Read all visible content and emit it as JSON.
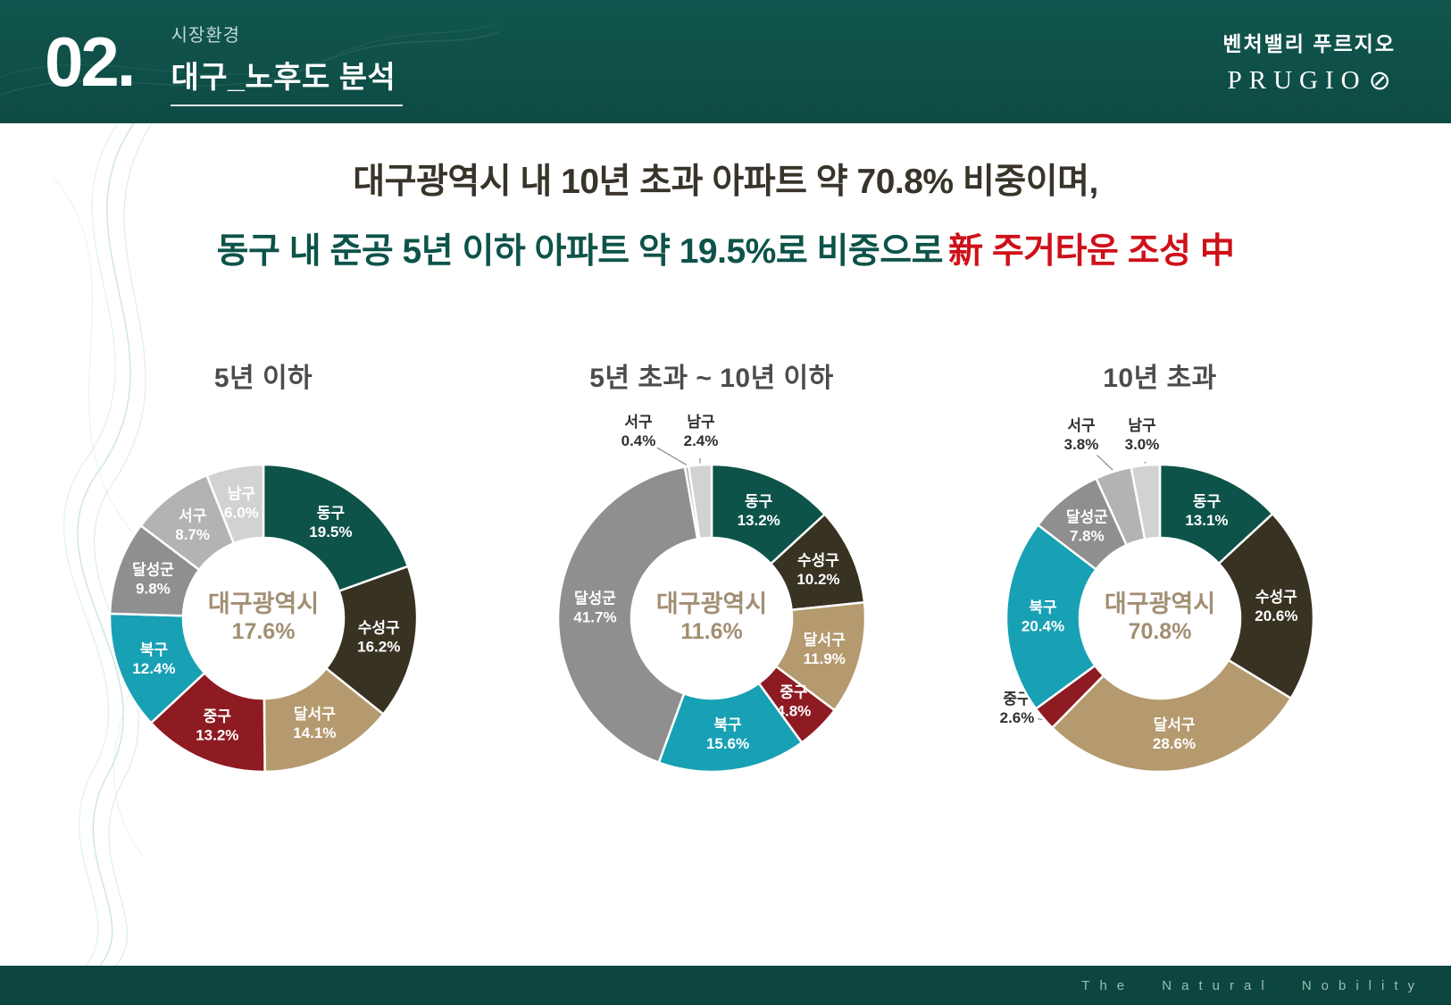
{
  "header": {
    "section_number": "02.",
    "section_category": "시장환경",
    "section_title": "대구_노후도 분석",
    "brand_name": "벤처밸리 푸르지오",
    "brand_logo_text": "PRUGIO",
    "brand_logo_mark": "⊘"
  },
  "headline": {
    "line1": "대구광역시 내 10년 초과 아파트 약 70.8% 비중이며,",
    "line2_main": "동구 내 준공 5년 이하 아파트 약 19.5%로 비중으로",
    "line2_accent": "新 주거타운 조성 中"
  },
  "colors": {
    "header_bg": "#0f4f48",
    "headline_dark": "#38342a",
    "headline_teal": "#0d5349",
    "headline_red": "#cf1019",
    "center_text": "#a28f73",
    "footer_bg": "#0c463f"
  },
  "chart_data": [
    {
      "type": "pie",
      "subtype": "donut",
      "title": "5년 이하",
      "center_label": "대구광역시",
      "center_value": "17.6%",
      "unit": "%",
      "start_angle_deg": 0,
      "direction": "clockwise",
      "legend_position": "none",
      "categories": [
        "동구",
        "수성구",
        "달서구",
        "중구",
        "북구",
        "달성군",
        "서구",
        "남구"
      ],
      "values": [
        19.5,
        16.2,
        14.1,
        13.2,
        12.4,
        9.8,
        8.7,
        6.0
      ],
      "colors": [
        "#0d5349",
        "#383222",
        "#b49a6e",
        "#8e1b22",
        "#18a0b4",
        "#8f8f8f",
        "#b3b3b3",
        "#d2d2d2"
      ],
      "outside_labels": {}
    },
    {
      "type": "pie",
      "subtype": "donut",
      "title": "5년 초과 ~ 10년 이하",
      "center_label": "대구광역시",
      "center_value": "11.6%",
      "unit": "%",
      "start_angle_deg": 0,
      "direction": "clockwise",
      "legend_position": "none",
      "categories": [
        "동구",
        "수성구",
        "달서구",
        "중구",
        "북구",
        "달성군",
        "서구",
        "남구"
      ],
      "values": [
        13.2,
        10.2,
        11.9,
        4.8,
        15.6,
        41.7,
        0.4,
        2.4
      ],
      "colors": [
        "#0d5349",
        "#383222",
        "#b49a6e",
        "#8e1b22",
        "#18a0b4",
        "#8f8f8f",
        "#b3b3b3",
        "#d2d2d2"
      ],
      "outside_labels": {
        "서구": [
          -82,
          -214
        ],
        "남구": [
          -12,
          -214
        ]
      }
    },
    {
      "type": "pie",
      "subtype": "donut",
      "title": "10년 초과",
      "center_label": "대구광역시",
      "center_value": "70.8%",
      "unit": "%",
      "start_angle_deg": 0,
      "direction": "clockwise",
      "legend_position": "none",
      "categories": [
        "동구",
        "수성구",
        "달서구",
        "중구",
        "북구",
        "달성군",
        "서구",
        "남구"
      ],
      "values": [
        13.1,
        20.6,
        28.6,
        2.6,
        20.4,
        7.8,
        3.8,
        3.0
      ],
      "colors": [
        "#0d5349",
        "#383222",
        "#b49a6e",
        "#8e1b22",
        "#18a0b4",
        "#8f8f8f",
        "#b3b3b3",
        "#d2d2d2"
      ],
      "outside_labels": {
        "서구": [
          -88,
          -210
        ],
        "남구": [
          -20,
          -210
        ],
        "중구": [
          -160,
          96
        ]
      }
    }
  ],
  "footer": {
    "tagline": "The Natural Nobility"
  }
}
